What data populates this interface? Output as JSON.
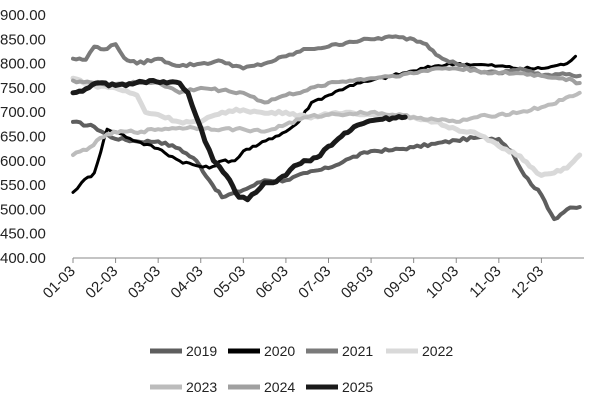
{
  "chart_data": {
    "type": "line",
    "title": "",
    "xlabel": "",
    "ylabel": "",
    "ylim": [
      400,
      900
    ],
    "y_ticks": [
      "900.00",
      "850.00",
      "800.00",
      "750.00",
      "700.00",
      "650.00",
      "600.00",
      "550.00",
      "500.00",
      "450.00",
      "400.00"
    ],
    "y_tick_values": [
      900,
      850,
      800,
      750,
      700,
      650,
      600,
      550,
      500,
      450,
      400
    ],
    "x_ticks": [
      "01-03",
      "02-03",
      "03-03",
      "04-03",
      "05-03",
      "06-03",
      "07-03",
      "08-03",
      "09-03",
      "10-03",
      "11-03",
      "12-03"
    ],
    "xlim": [
      0,
      12
    ],
    "grid": false,
    "legend_position": "bottom",
    "series": [
      {
        "name": "2019",
        "color": "#5e5e5e",
        "width": 4,
        "points": [
          [
            0,
            680
          ],
          [
            0.5,
            670
          ],
          [
            0.9,
            648
          ],
          [
            1.5,
            640
          ],
          [
            2.0,
            640
          ],
          [
            2.5,
            625
          ],
          [
            2.9,
            600
          ],
          [
            3.2,
            560
          ],
          [
            3.5,
            525
          ],
          [
            4.0,
            540
          ],
          [
            4.5,
            560
          ],
          [
            5.0,
            560
          ],
          [
            5.5,
            575
          ],
          [
            6.0,
            585
          ],
          [
            6.5,
            605
          ],
          [
            7.0,
            620
          ],
          [
            7.5,
            622
          ],
          [
            8.0,
            628
          ],
          [
            8.5,
            635
          ],
          [
            9.0,
            642
          ],
          [
            9.5,
            648
          ],
          [
            10.0,
            645
          ],
          [
            10.3,
            620
          ],
          [
            10.6,
            570
          ],
          [
            11.0,
            530
          ],
          [
            11.3,
            480
          ],
          [
            11.6,
            500
          ],
          [
            11.9,
            505
          ]
        ]
      },
      {
        "name": "2020",
        "color": "#000000",
        "width": 3,
        "points": [
          [
            0,
            535
          ],
          [
            0.2,
            555
          ],
          [
            0.5,
            575
          ],
          [
            0.8,
            665
          ],
          [
            1.0,
            660
          ],
          [
            1.5,
            640
          ],
          [
            2.0,
            625
          ],
          [
            2.5,
            600
          ],
          [
            2.9,
            590
          ],
          [
            3.2,
            585
          ],
          [
            3.5,
            600
          ],
          [
            3.8,
            600
          ],
          [
            4.0,
            620
          ],
          [
            4.3,
            630
          ],
          [
            4.6,
            645
          ],
          [
            5.0,
            660
          ],
          [
            5.3,
            680
          ],
          [
            5.6,
            720
          ],
          [
            6.0,
            735
          ],
          [
            6.5,
            755
          ],
          [
            7.0,
            765
          ],
          [
            7.5,
            775
          ],
          [
            8.0,
            785
          ],
          [
            8.5,
            795
          ],
          [
            9.0,
            800
          ],
          [
            9.5,
            798
          ],
          [
            10.0,
            795
          ],
          [
            10.5,
            790
          ],
          [
            11.0,
            790
          ],
          [
            11.3,
            795
          ],
          [
            11.6,
            800
          ],
          [
            11.8,
            815
          ]
        ]
      },
      {
        "name": "2021",
        "color": "#7a7a7a",
        "width": 4,
        "points": [
          [
            0,
            810
          ],
          [
            0.3,
            808
          ],
          [
            0.5,
            835
          ],
          [
            0.8,
            830
          ],
          [
            1.0,
            840
          ],
          [
            1.2,
            812
          ],
          [
            1.5,
            800
          ],
          [
            2.0,
            810
          ],
          [
            2.5,
            795
          ],
          [
            3.0,
            800
          ],
          [
            3.5,
            805
          ],
          [
            4.0,
            790
          ],
          [
            4.5,
            800
          ],
          [
            5.0,
            815
          ],
          [
            5.5,
            830
          ],
          [
            6.0,
            835
          ],
          [
            6.5,
            845
          ],
          [
            7.0,
            850
          ],
          [
            7.5,
            855
          ],
          [
            8.0,
            850
          ],
          [
            8.3,
            840
          ],
          [
            8.6,
            815
          ],
          [
            9.0,
            800
          ],
          [
            9.5,
            785
          ],
          [
            10.0,
            780
          ],
          [
            10.5,
            790
          ],
          [
            11.0,
            775
          ],
          [
            11.5,
            780
          ],
          [
            11.9,
            775
          ]
        ]
      },
      {
        "name": "2022",
        "color": "#d9d9d9",
        "width": 5,
        "points": [
          [
            0,
            770
          ],
          [
            0.5,
            755
          ],
          [
            1.0,
            750
          ],
          [
            1.5,
            735
          ],
          [
            1.7,
            700
          ],
          [
            2.0,
            695
          ],
          [
            2.5,
            680
          ],
          [
            3.0,
            680
          ],
          [
            3.5,
            700
          ],
          [
            4.0,
            705
          ],
          [
            4.5,
            698
          ],
          [
            5.0,
            700
          ],
          [
            5.5,
            690
          ],
          [
            6.0,
            695
          ],
          [
            6.5,
            700
          ],
          [
            7.0,
            695
          ],
          [
            7.5,
            690
          ],
          [
            8.0,
            690
          ],
          [
            8.5,
            680
          ],
          [
            9.0,
            665
          ],
          [
            9.5,
            655
          ],
          [
            10.0,
            630
          ],
          [
            10.5,
            610
          ],
          [
            10.8,
            585
          ],
          [
            11.0,
            570
          ],
          [
            11.3,
            575
          ],
          [
            11.6,
            585
          ],
          [
            11.9,
            612
          ]
        ]
      },
      {
        "name": "2023",
        "color": "#bcbcbc",
        "width": 4,
        "points": [
          [
            0,
            612
          ],
          [
            0.4,
            628
          ],
          [
            0.8,
            655
          ],
          [
            1.2,
            660
          ],
          [
            1.6,
            660
          ],
          [
            2.0,
            665
          ],
          [
            2.5,
            668
          ],
          [
            3.0,
            668
          ],
          [
            3.5,
            665
          ],
          [
            4.0,
            665
          ],
          [
            4.5,
            660
          ],
          [
            5.0,
            675
          ],
          [
            5.5,
            690
          ],
          [
            6.0,
            695
          ],
          [
            6.5,
            697
          ],
          [
            7.0,
            700
          ],
          [
            7.5,
            695
          ],
          [
            8.0,
            690
          ],
          [
            8.5,
            685
          ],
          [
            9.0,
            680
          ],
          [
            9.5,
            690
          ],
          [
            10.0,
            695
          ],
          [
            10.5,
            700
          ],
          [
            11.0,
            710
          ],
          [
            11.5,
            725
          ],
          [
            11.9,
            740
          ]
        ]
      },
      {
        "name": "2024",
        "color": "#a0a0a0",
        "width": 4,
        "points": [
          [
            0,
            765
          ],
          [
            0.5,
            760
          ],
          [
            1.0,
            758
          ],
          [
            1.5,
            760
          ],
          [
            2.0,
            762
          ],
          [
            2.5,
            740
          ],
          [
            3.0,
            750
          ],
          [
            3.5,
            745
          ],
          [
            4.0,
            740
          ],
          [
            4.5,
            720
          ],
          [
            5.0,
            735
          ],
          [
            5.5,
            745
          ],
          [
            6.0,
            760
          ],
          [
            6.5,
            765
          ],
          [
            7.0,
            770
          ],
          [
            7.5,
            775
          ],
          [
            8.0,
            780
          ],
          [
            8.5,
            790
          ],
          [
            9.0,
            790
          ],
          [
            9.5,
            785
          ],
          [
            10.0,
            780
          ],
          [
            10.5,
            780
          ],
          [
            11.0,
            775
          ],
          [
            11.5,
            770
          ],
          [
            11.9,
            760
          ]
        ]
      },
      {
        "name": "2025",
        "color": "#1a1a1a",
        "width": 5,
        "points": [
          [
            0,
            740
          ],
          [
            0.3,
            748
          ],
          [
            0.6,
            760
          ],
          [
            1.0,
            755
          ],
          [
            1.4,
            758
          ],
          [
            1.8,
            765
          ],
          [
            2.2,
            760
          ],
          [
            2.5,
            760
          ],
          [
            2.7,
            740
          ],
          [
            2.9,
            690
          ],
          [
            3.1,
            640
          ],
          [
            3.3,
            600
          ],
          [
            3.6,
            570
          ],
          [
            3.9,
            525
          ],
          [
            4.1,
            520
          ],
          [
            4.3,
            535
          ],
          [
            4.5,
            555
          ],
          [
            4.7,
            555
          ],
          [
            5.0,
            570
          ],
          [
            5.2,
            590
          ],
          [
            5.5,
            600
          ],
          [
            5.8,
            610
          ],
          [
            6.0,
            630
          ],
          [
            6.3,
            650
          ],
          [
            6.6,
            670
          ],
          [
            6.9,
            680
          ],
          [
            7.2,
            685
          ],
          [
            7.5,
            688
          ],
          [
            7.8,
            690
          ]
        ]
      }
    ]
  }
}
